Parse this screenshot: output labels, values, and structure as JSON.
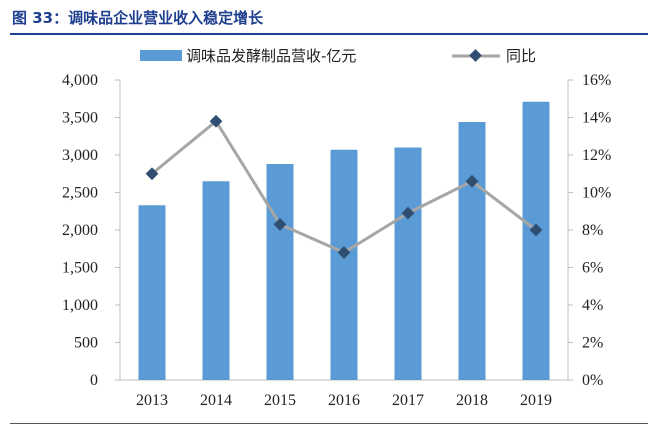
{
  "figure": {
    "title": "图 33：调味品企业营业收入稳定增长"
  },
  "colors": {
    "title": "#1f3f8f",
    "bar": "#5b9bd5",
    "line": "#a6a6a6",
    "marker": "#2f4e72",
    "axis": "#bfbfbf"
  },
  "chart_data": {
    "type": "bar",
    "categories": [
      "2013",
      "2014",
      "2015",
      "2016",
      "2017",
      "2018",
      "2019"
    ],
    "series": [
      {
        "name": "调味品发酵制品营收-亿元",
        "type": "bar",
        "axis": "left",
        "values": [
          2330,
          2650,
          2880,
          3070,
          3100,
          3440,
          3710
        ]
      },
      {
        "name": "同比",
        "type": "line",
        "axis": "right",
        "marker": "diamond",
        "values": [
          11.0,
          13.8,
          8.3,
          6.8,
          8.9,
          10.6,
          8.0
        ]
      }
    ],
    "y_left": {
      "min": 0,
      "max": 4000,
      "step": 500,
      "tick_labels": [
        "0",
        "500",
        "1,000",
        "1,500",
        "2,000",
        "2,500",
        "3,000",
        "3,500",
        "4,000"
      ]
    },
    "y_right": {
      "min": 0,
      "max": 16,
      "step": 2,
      "tick_labels": [
        "0%",
        "2%",
        "4%",
        "6%",
        "8%",
        "10%",
        "12%",
        "14%",
        "16%"
      ]
    },
    "grid": false,
    "legend": "top-center"
  }
}
